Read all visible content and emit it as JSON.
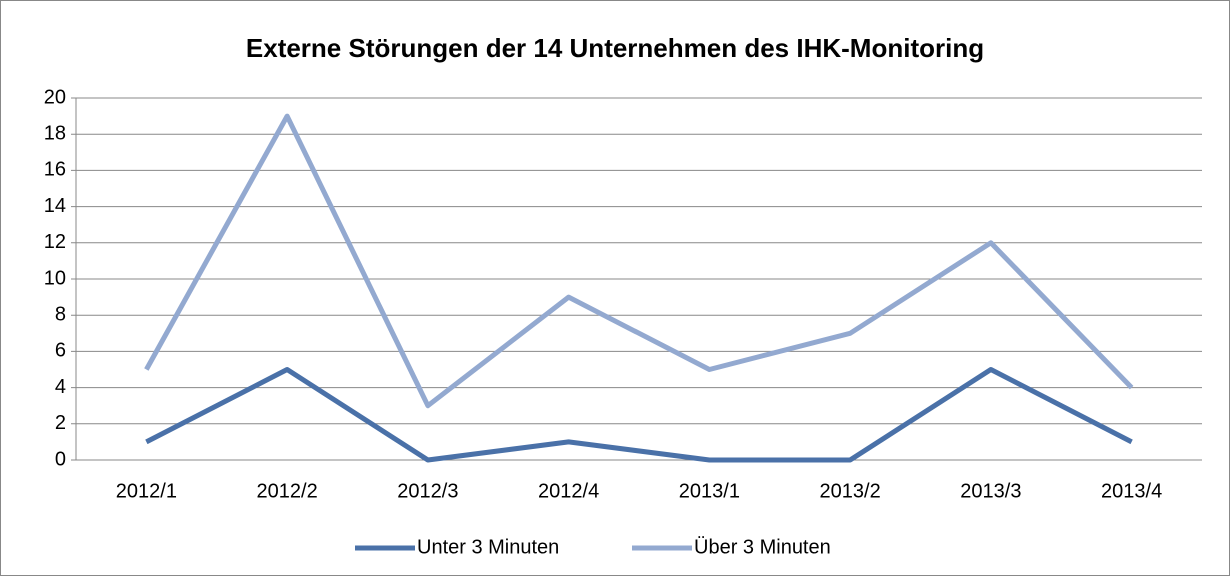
{
  "chart_data": {
    "type": "line",
    "title": "Externe Störungen der 14 Unternehmen des IHK-Monitoring",
    "categories": [
      "2012/1",
      "2012/2",
      "2012/3",
      "2012/4",
      "2013/1",
      "2013/2",
      "2013/3",
      "2013/4"
    ],
    "series": [
      {
        "name": "Unter 3 Minuten",
        "color": "#4a71a8",
        "values": [
          1,
          5,
          0,
          1,
          0,
          0,
          5,
          1
        ]
      },
      {
        "name": "Über 3 Minuten",
        "color": "#93a9d0",
        "values": [
          5,
          19,
          3,
          9,
          5,
          7,
          12,
          4
        ]
      }
    ],
    "ylim": [
      0,
      20
    ],
    "yticks": [
      0,
      2,
      4,
      6,
      8,
      10,
      12,
      14,
      16,
      18,
      20
    ],
    "grid": true,
    "legend": "bottom"
  }
}
